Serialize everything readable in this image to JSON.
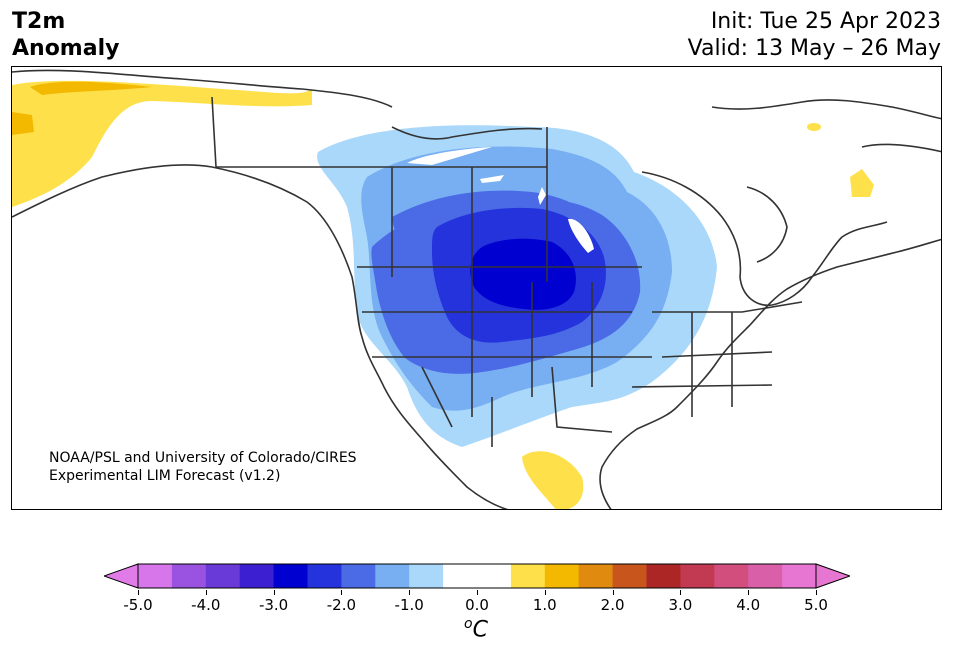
{
  "header": {
    "title_line1": "T2m",
    "title_line2": "Anomaly",
    "init": "Init: Tue 25 Apr 2023",
    "valid": "Valid: 13 May – 26 May"
  },
  "credit": {
    "line1": "NOAA/PSL and University of Colorado/CIRES",
    "line2": "Experimental LIM Forecast (v1.2)"
  },
  "colorbar": {
    "unit": "C",
    "unit_prefix": "o",
    "ticks": [
      "-5.0",
      "-4.0",
      "-3.0",
      "-2.0",
      "-1.0",
      "0.0",
      "1.0",
      "2.0",
      "3.0",
      "4.0",
      "5.0"
    ],
    "colors": [
      "#d676ea",
      "#9a52e0",
      "#6a3ad8",
      "#3b1fd0",
      "#0000d0",
      "#2433dc",
      "#4a6ae6",
      "#78aef2",
      "#aad8fa",
      "#ffffff",
      "#ffffff",
      "#fee04a",
      "#f3b800",
      "#e08a10",
      "#c8561c",
      "#ad2626",
      "#c23a52",
      "#d24e7c",
      "#d85fa8",
      "#e676d2"
    ],
    "extend_low_color": "#e17be8",
    "extend_high_color": "#e676d2"
  }
}
